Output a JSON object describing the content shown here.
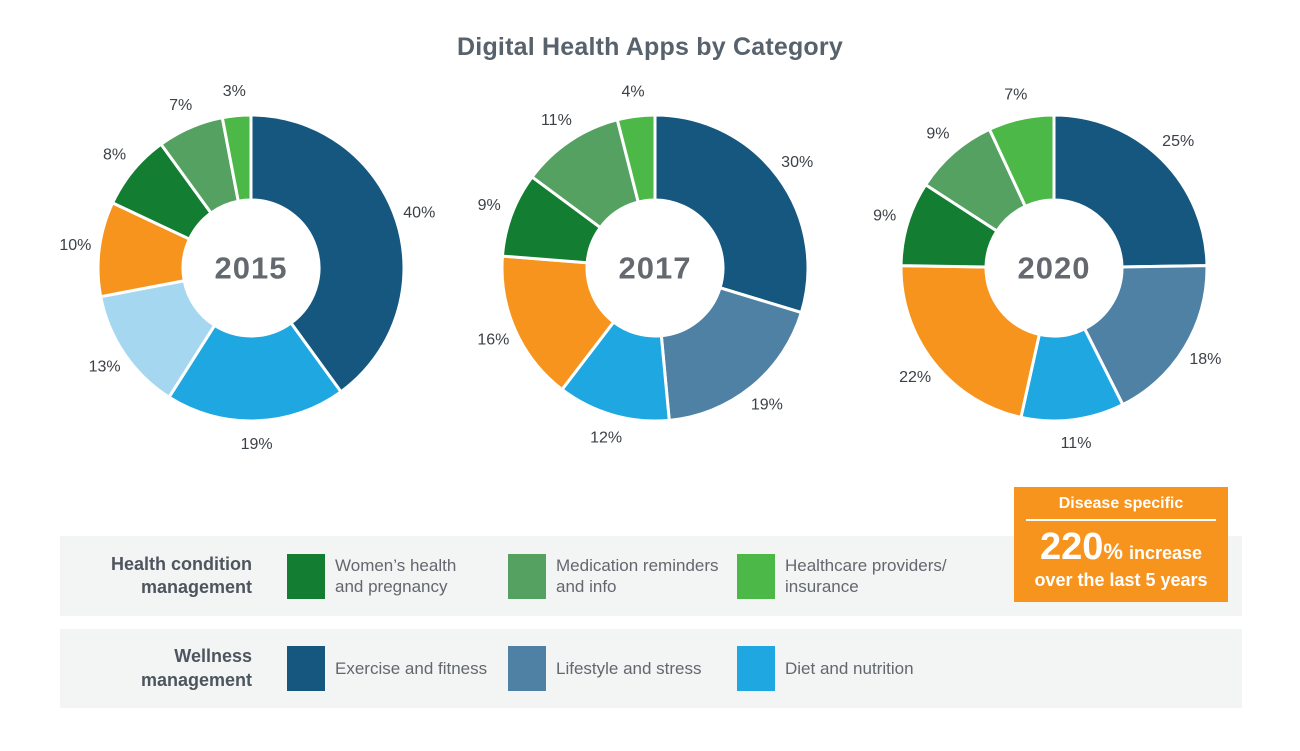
{
  "title": "Digital Health Apps by Category",
  "chart_data": [
    {
      "type": "pie",
      "title": "2015",
      "donut": true,
      "segments": [
        {
          "label": "Exercise and fitness",
          "value": 40,
          "color": "#165780"
        },
        {
          "label": "Diet and nutrition",
          "value": 19,
          "color": "#1EA7E1"
        },
        {
          "label": "Lifestyle and stress",
          "value": 13,
          "color": "#A6D7F0"
        },
        {
          "label": "Disease specific",
          "value": 10,
          "color": "#F7941E"
        },
        {
          "label": "Women’s health and pregnancy",
          "value": 8,
          "color": "#137D31"
        },
        {
          "label": "Medication reminders and info",
          "value": 7,
          "color": "#55A161"
        },
        {
          "label": "Healthcare providers/insurance",
          "value": 3,
          "color": "#4CB847"
        }
      ]
    },
    {
      "type": "pie",
      "title": "2017",
      "donut": true,
      "segments": [
        {
          "label": "Exercise and fitness",
          "value": 30,
          "color": "#165780"
        },
        {
          "label": "Lifestyle and stress",
          "value": 19,
          "color": "#4E81A4"
        },
        {
          "label": "Diet and nutrition",
          "value": 12,
          "color": "#1EA7E1"
        },
        {
          "label": "Disease specific",
          "value": 16,
          "color": "#F7941E"
        },
        {
          "label": "Women’s health and pregnancy",
          "value": 9,
          "color": "#137D31"
        },
        {
          "label": "Medication reminders and info",
          "value": 11,
          "color": "#55A161"
        },
        {
          "label": "Healthcare providers/insurance",
          "value": 4,
          "color": "#4CB847"
        }
      ]
    },
    {
      "type": "pie",
      "title": "2020",
      "donut": true,
      "segments": [
        {
          "label": "Exercise and fitness",
          "value": 25,
          "color": "#165780"
        },
        {
          "label": "Lifestyle and stress",
          "value": 18,
          "color": "#4E81A4"
        },
        {
          "label": "Diet and nutrition",
          "value": 11,
          "color": "#1EA7E1"
        },
        {
          "label": "Disease specific",
          "value": 22,
          "color": "#F7941E"
        },
        {
          "label": "Women’s health and pregnancy",
          "value": 9,
          "color": "#137D31"
        },
        {
          "label": "Medication reminders and info",
          "value": 9,
          "color": "#55A161"
        },
        {
          "label": "Healthcare providers/insurance",
          "value": 7,
          "color": "#4CB847"
        }
      ]
    }
  ],
  "legend": {
    "rows": [
      {
        "heading_lines": [
          "Health condition",
          "management"
        ],
        "items": [
          {
            "lines": [
              "Women’s health",
              "and pregnancy"
            ],
            "color": "#137D31"
          },
          {
            "lines": [
              "Medication reminders",
              "and info"
            ],
            "color": "#55A161"
          },
          {
            "lines": [
              "Healthcare providers/",
              "insurance"
            ],
            "color": "#4CB847"
          }
        ]
      },
      {
        "heading_lines": [
          "Wellness",
          "management"
        ],
        "items": [
          {
            "lines": [
              "Exercise and fitness"
            ],
            "color": "#165780"
          },
          {
            "lines": [
              "Lifestyle and stress"
            ],
            "color": "#4E81A4"
          },
          {
            "lines": [
              "Diet and nutrition"
            ],
            "color": "#1EA7E1"
          }
        ]
      }
    ]
  },
  "callout": {
    "title": "Disease specific",
    "value": "220",
    "unit": "%",
    "suffix": "increase",
    "line2": "over the last 5 years",
    "bg_color": "#F7941E"
  }
}
